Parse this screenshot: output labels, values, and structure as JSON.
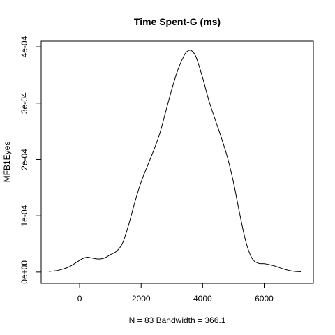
{
  "chart_data": {
    "type": "line",
    "title": "Time Spent-G (ms)",
    "xlabel": "N = 83   Bandwidth = 366.1",
    "ylabel": "MFB1Eyes",
    "xlim": [
      -1250,
      7600
    ],
    "ylim": [
      -2e-05,
      0.00041
    ],
    "x_ticks": [
      0,
      2000,
      4000,
      6000
    ],
    "x_tick_labels": [
      "0",
      "2000",
      "4000",
      "6000"
    ],
    "y_ticks": [
      0,
      0.0001,
      0.0002,
      0.0003,
      0.0004
    ],
    "y_tick_labels": [
      "0e+00",
      "1e-04",
      "2e-04",
      "3e-04",
      "4e-04"
    ],
    "grid": false,
    "legend": "none",
    "series": [
      {
        "color": "#000000",
        "x": [
          -1000,
          -700,
          -400,
          -200,
          0,
          100,
          250,
          400,
          550,
          700,
          850,
          1000,
          1200,
          1400,
          1600,
          1800,
          2000,
          2200,
          2400,
          2600,
          2800,
          3000,
          3200,
          3400,
          3500,
          3600,
          3700,
          3800,
          4000,
          4200,
          4400,
          4600,
          4800,
          5000,
          5200,
          5400,
          5600,
          5800,
          6000,
          6200,
          6400,
          6600,
          6800,
          7000,
          7200
        ],
        "y": [
          1e-06,
          3e-06,
          8e-06,
          1.4e-05,
          2.1e-05,
          2.4e-05,
          2.65e-05,
          2.5e-05,
          2.35e-05,
          2.35e-05,
          2.6e-05,
          3.1e-05,
          3.7e-05,
          5.2e-05,
          8.5e-05,
          0.000125,
          0.00016,
          0.000188,
          0.000215,
          0.000245,
          0.000285,
          0.000325,
          0.00036,
          0.000385,
          0.000392,
          0.000394,
          0.00039,
          0.00038,
          0.000345,
          0.000305,
          0.000272,
          0.00024,
          0.000205,
          0.00016,
          0.000105,
          5.5e-05,
          2.5e-05,
          1.6e-05,
          1.5e-05,
          1.3e-05,
          1e-05,
          6e-06,
          3e-06,
          1e-06,
          5e-07
        ]
      }
    ]
  }
}
